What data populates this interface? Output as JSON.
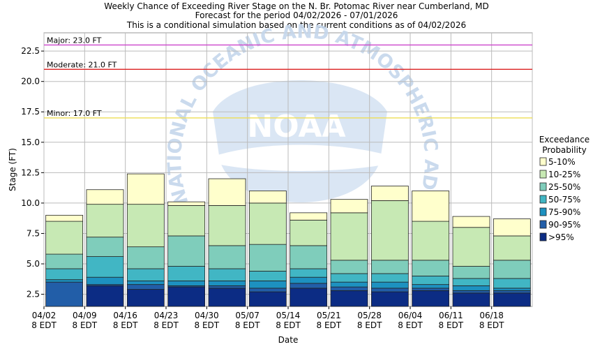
{
  "chart_data": {
    "type": "bar",
    "title_lines": [
      "Weekly Chance of Exceeding River Stage on the N. Br. Potomac River near Cumberland, MD",
      "Forecast for the period 04/02/2026 - 07/01/2026",
      "This is a conditional simulation based on the current conditions as of 04/02/2026"
    ],
    "xlabel": "Date",
    "ylabel": "Stage (FT)",
    "ylim": [
      1.5,
      24.0
    ],
    "yticks": [
      "2.5",
      "5.0",
      "7.5",
      "10.0",
      "12.5",
      "15.0",
      "17.5",
      "20.0",
      "22.5"
    ],
    "yticks_values": [
      2.5,
      5.0,
      7.5,
      10.0,
      12.5,
      15.0,
      17.5,
      20.0,
      22.5
    ],
    "xticks": [
      {
        "date": "04/02",
        "tz": "8 EDT"
      },
      {
        "date": "04/09",
        "tz": "8 EDT"
      },
      {
        "date": "04/16",
        "tz": "8 EDT"
      },
      {
        "date": "04/23",
        "tz": "8 EDT"
      },
      {
        "date": "04/30",
        "tz": "8 EDT"
      },
      {
        "date": "05/07",
        "tz": "8 EDT"
      },
      {
        "date": "05/14",
        "tz": "8 EDT"
      },
      {
        "date": "05/21",
        "tz": "8 EDT"
      },
      {
        "date": "05/28",
        "tz": "8 EDT"
      },
      {
        "date": "06/04",
        "tz": "8 EDT"
      },
      {
        "date": "06/11",
        "tz": "8 EDT"
      },
      {
        "date": "06/18",
        "tz": "8 EDT"
      }
    ],
    "flood_levels": [
      {
        "label": "Major: 23.0 FT",
        "value": 23.0,
        "color": "#cc44cc"
      },
      {
        "label": "Moderate: 21.0 FT",
        "value": 21.0,
        "color": "#dd2222"
      },
      {
        "label": "Minor: 17.0 FT",
        "value": 17.0,
        "color": "#eedd55"
      }
    ],
    "legend_title": [
      "Exceedance",
      "Probability"
    ],
    "legend_position": "right",
    "series": [
      {
        "name": "5-10%",
        "color": "#ffffcc"
      },
      {
        "name": "10-25%",
        "color": "#c7e9b4"
      },
      {
        "name": "25-50%",
        "color": "#7fcdbb"
      },
      {
        "name": "50-75%",
        "color": "#41b6c4"
      },
      {
        "name": "75-90%",
        "color": "#1d91c0"
      },
      {
        "name": "90-95%",
        "color": "#225ea8"
      },
      {
        ">95%_name": "",
        "name": ">95%",
        "color": "#0c2c84"
      }
    ],
    "bars": [
      {
        "week": "04/02",
        "edges": [
          3.5,
          3.7,
          4.6,
          5.8,
          8.5,
          9.0
        ]
      },
      {
        "week": "04/09",
        "edges": [
          3.2,
          3.3,
          3.9,
          5.6,
          7.2,
          9.9,
          11.1
        ]
      },
      {
        "week": "04/16",
        "edges": [
          2.9,
          3.3,
          3.6,
          4.6,
          6.4,
          9.9,
          12.4
        ]
      },
      {
        "week": "04/23",
        "edges": [
          3.1,
          3.2,
          3.6,
          4.8,
          7.3,
          9.8,
          10.1
        ]
      },
      {
        "week": "04/30",
        "edges": [
          3.0,
          3.2,
          3.6,
          4.6,
          6.5,
          9.8,
          12.0
        ]
      },
      {
        "week": "05/07",
        "edges": [
          2.7,
          3.0,
          3.6,
          4.4,
          6.6,
          10.0,
          11.0
        ]
      },
      {
        "week": "05/14",
        "edges": [
          3.0,
          3.4,
          3.9,
          4.6,
          6.5,
          8.6,
          9.2
        ]
      },
      {
        "week": "05/21",
        "edges": [
          2.8,
          3.1,
          3.5,
          4.2,
          5.3,
          9.2,
          10.3
        ]
      },
      {
        "week": "05/28",
        "edges": [
          2.7,
          3.0,
          3.5,
          4.2,
          5.3,
          10.2,
          11.4
        ]
      },
      {
        "week": "06/04",
        "edges": [
          2.8,
          3.0,
          3.3,
          4.0,
          5.3,
          8.5,
          11.0
        ]
      },
      {
        "week": "06/11",
        "edges": [
          2.6,
          2.8,
          3.2,
          3.8,
          4.8,
          8.0,
          8.9
        ]
      },
      {
        "week": "06/18",
        "edges": [
          2.6,
          2.8,
          3.0,
          3.8,
          5.3,
          7.3,
          8.7
        ]
      }
    ]
  },
  "watermark": {
    "ring_text": "NATIONAL OCEANIC AND ATMOSPHERIC ADMINISTRATION",
    "logo_text": "NOAA"
  }
}
